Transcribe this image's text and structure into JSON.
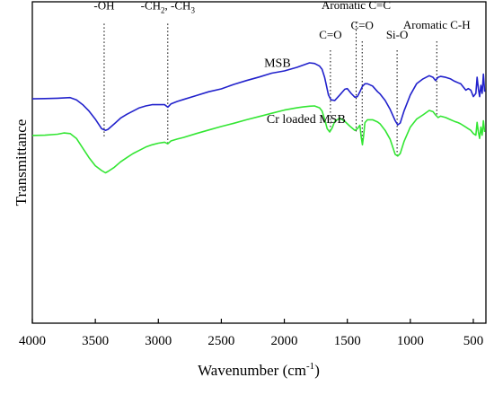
{
  "chart_data": {
    "type": "line",
    "title": "",
    "xlabel": "Wavenumber (cm",
    "xlabel_sup": "-1",
    "xlabel_close": ")",
    "ylabel": "Transmittance",
    "xlim": [
      4000,
      400
    ],
    "ylim": [
      0,
      100
    ],
    "x_reversed": true,
    "y_ticks_shown": false,
    "grid": false,
    "x_ticks": [
      "4000",
      "3500",
      "3000",
      "2500",
      "2000",
      "1500",
      "1000",
      "500"
    ],
    "x_tick_values": [
      4000,
      3500,
      3000,
      2500,
      2000,
      1500,
      1000,
      500
    ],
    "series": [
      {
        "name": "MSB",
        "color": "#2222cc",
        "x": [
          4000,
          3900,
          3800,
          3700,
          3650,
          3600,
          3550,
          3500,
          3450,
          3420,
          3400,
          3350,
          3300,
          3250,
          3200,
          3150,
          3100,
          3050,
          3000,
          2950,
          2925,
          2900,
          2850,
          2800,
          2700,
          2600,
          2500,
          2400,
          2300,
          2200,
          2100,
          2000,
          1900,
          1850,
          1800,
          1760,
          1720,
          1700,
          1680,
          1650,
          1630,
          1600,
          1560,
          1520,
          1500,
          1470,
          1440,
          1420,
          1400,
          1380,
          1360,
          1340,
          1300,
          1260,
          1240,
          1200,
          1160,
          1120,
          1100,
          1080,
          1050,
          1000,
          950,
          900,
          850,
          820,
          800,
          780,
          760,
          720,
          680,
          650,
          620,
          600,
          580,
          560,
          540,
          520,
          500,
          480,
          470,
          460,
          450,
          440,
          430,
          420,
          410
        ],
        "y": [
          69.8,
          69.9,
          70.0,
          70.2,
          69.5,
          68.0,
          66.0,
          63.5,
          60.5,
          60.0,
          60.3,
          62.0,
          63.8,
          65.0,
          66.0,
          67.0,
          67.6,
          68.0,
          68.0,
          68.0,
          67.2,
          68.2,
          69.0,
          69.6,
          70.8,
          72.0,
          72.9,
          74.3,
          75.5,
          76.6,
          77.8,
          78.5,
          79.6,
          80.3,
          81.0,
          80.8,
          80.0,
          79.0,
          76.5,
          71.0,
          69.5,
          69.3,
          71.0,
          72.8,
          73.0,
          71.5,
          70.3,
          70.5,
          72.0,
          73.7,
          74.5,
          74.5,
          73.8,
          72.0,
          71.3,
          69.3,
          66.5,
          63.0,
          61.7,
          62.3,
          66.0,
          71.0,
          74.5,
          76.0,
          77.0,
          76.5,
          75.5,
          76.5,
          76.8,
          76.5,
          76.0,
          75.3,
          74.8,
          74.5,
          73.5,
          72.5,
          73.0,
          72.5,
          70.5,
          71.5,
          76.5,
          73.0,
          70.5,
          74.0,
          71.5,
          77.5,
          72.0
        ]
      },
      {
        "name": "Cr loaded MSB",
        "color": "#33e633",
        "x": [
          4000,
          3900,
          3800,
          3750,
          3700,
          3650,
          3600,
          3550,
          3500,
          3450,
          3420,
          3400,
          3350,
          3300,
          3250,
          3200,
          3150,
          3100,
          3050,
          3000,
          2950,
          2925,
          2900,
          2850,
          2800,
          2700,
          2600,
          2500,
          2400,
          2300,
          2200,
          2100,
          2000,
          1900,
          1850,
          1800,
          1760,
          1720,
          1700,
          1680,
          1660,
          1640,
          1620,
          1600,
          1560,
          1520,
          1480,
          1440,
          1420,
          1400,
          1390,
          1380,
          1370,
          1360,
          1340,
          1300,
          1260,
          1240,
          1200,
          1160,
          1120,
          1100,
          1080,
          1050,
          1000,
          950,
          900,
          850,
          820,
          800,
          780,
          760,
          720,
          680,
          650,
          620,
          600,
          580,
          560,
          540,
          520,
          500,
          480,
          470,
          460,
          450,
          440,
          430,
          420,
          410
        ],
        "y": [
          58.4,
          58.5,
          58.8,
          59.2,
          59.0,
          57.5,
          54.5,
          51.5,
          49.0,
          47.5,
          46.8,
          47.2,
          48.5,
          50.2,
          51.5,
          52.8,
          53.8,
          54.8,
          55.5,
          56.0,
          56.3,
          55.8,
          56.7,
          57.3,
          57.8,
          59.0,
          60.1,
          61.2,
          62.2,
          63.3,
          64.3,
          65.3,
          66.3,
          67.0,
          67.3,
          67.5,
          67.6,
          67.0,
          66.0,
          63.5,
          60.5,
          59.5,
          60.8,
          62.8,
          63.8,
          62.8,
          61.3,
          60.0,
          60.5,
          61.6,
          58.0,
          55.5,
          58.5,
          62.4,
          63.3,
          63.3,
          62.6,
          62.0,
          60.0,
          57.2,
          52.5,
          52.0,
          52.8,
          56.5,
          61.0,
          63.5,
          64.8,
          66.2,
          65.8,
          64.8,
          64.0,
          64.4,
          64.0,
          63.3,
          62.8,
          62.4,
          62.0,
          61.5,
          61.0,
          60.5,
          60.0,
          59.0,
          58.5,
          62.5,
          59.5,
          57.5,
          61.0,
          58.5,
          63.0,
          59.5
        ]
      }
    ],
    "series_labels": [
      {
        "series": "MSB",
        "text": "MSB",
        "x": 2160,
        "y": 79.7
      },
      {
        "series": "Cr loaded MSB",
        "text": "Cr loaded MSB",
        "x": 2140,
        "y": 62.3
      }
    ],
    "annotations": [
      {
        "text": "-OH",
        "x": 3430,
        "label_y": 97.6,
        "line_top": 93.2,
        "line_bottom": 57.5
      },
      {
        "main": "-CH",
        "sub1": "2",
        "mid": ", -CH",
        "sub2": "3",
        "x": 2925,
        "label_y": 97.6,
        "line_top": 93.2,
        "line_bottom": 55.5
      },
      {
        "text": "C=O",
        "x": 1634,
        "label_y": 88.5,
        "line_top": 84.9,
        "line_bottom": 59.5
      },
      {
        "text": "Aromatic C=C",
        "x": 1430,
        "label_y": 97.8,
        "line_top": 93.6,
        "line_bottom": 59.5
      },
      {
        "text": "C=O",
        "x": 1382,
        "label_y": 91.5,
        "line_top": 87.7,
        "line_bottom": 55.5
      },
      {
        "text": "Si-O",
        "x": 1105,
        "label_y": 88.5,
        "line_top": 84.9,
        "line_bottom": 52.0
      },
      {
        "text": "Aromatic C-H",
        "x": 790,
        "label_y": 91.6,
        "line_top": 87.7,
        "line_bottom": 64.5
      }
    ]
  }
}
